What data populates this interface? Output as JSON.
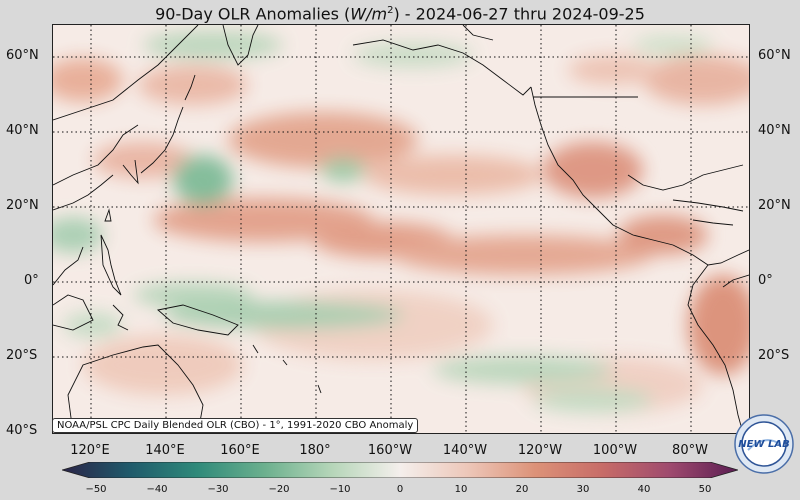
{
  "title": {
    "prefix": "90-Day OLR Anomalies (",
    "unit_base": "W/m",
    "unit_exp": "2",
    "suffix": ") - 2024-06-27 thru 2024-09-25"
  },
  "credit": "NOAA/PSL CPC Daily Blended OLR (CBO) - 1°, 1991-2020 CBO Anomaly",
  "lat_labels": [
    "60°N",
    "40°N",
    "20°N",
    "0°",
    "20°S",
    "40°S"
  ],
  "lon_labels": [
    "120°E",
    "140°E",
    "160°E",
    "180°",
    "160°W",
    "140°W",
    "120°W",
    "100°W",
    "80°W"
  ],
  "colorbar": {
    "ticks": [
      "−50",
      "−40",
      "−30",
      "−20",
      "−10",
      "0",
      "10",
      "20",
      "30",
      "40",
      "50"
    ],
    "colors": [
      "#2b2448",
      "#1f5a6b",
      "#2f8a7a",
      "#6cb08e",
      "#b6d6b9",
      "#f4efec",
      "#edc7b9",
      "#dc9278",
      "#c76c68",
      "#9e4a6e",
      "#5a1d52"
    ]
  },
  "logo": {
    "text": "NEW LAB"
  }
}
